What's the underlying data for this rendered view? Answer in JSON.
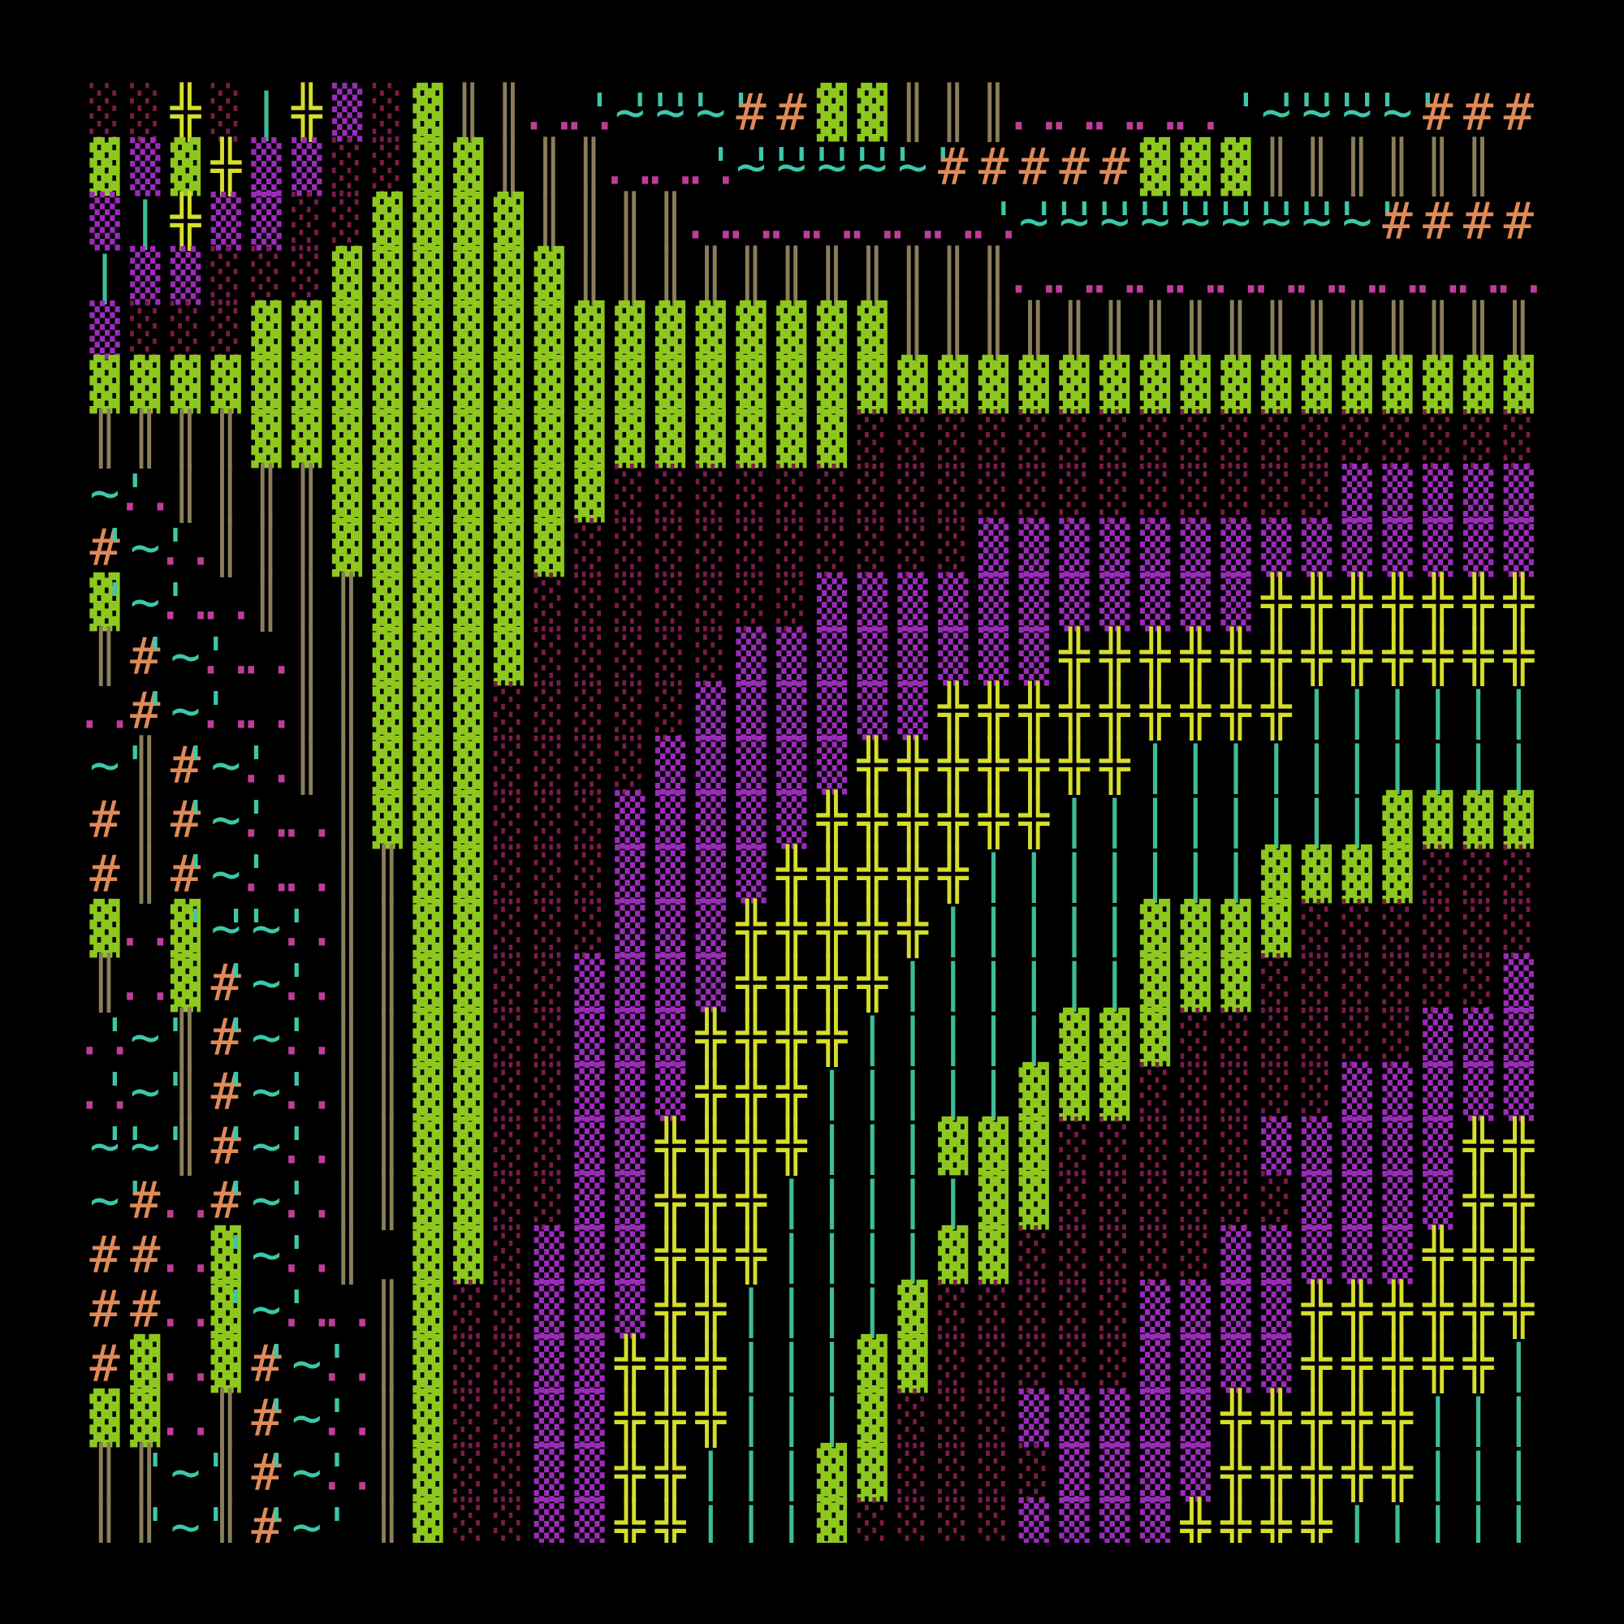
{
  "grid": {
    "rows": [
      [
        "░",
        "░",
        "╬",
        "░",
        "|",
        "╬",
        "▒",
        "░",
        "▓",
        "║",
        "║",
        "..",
        "..",
        "'~'",
        "'~'",
        "'~'",
        "#",
        "#",
        "▓",
        "▓",
        "║",
        "║",
        "║",
        "..",
        "..",
        "..",
        "..",
        "..",
        null,
        "'~'",
        "'~'",
        "'~'",
        "'~'",
        "#",
        "#",
        "#"
      ],
      [
        "▓",
        "▒",
        "▓",
        "╬",
        "▒",
        "▒",
        "░",
        "░",
        "▓",
        "▓",
        "║",
        "║",
        "║",
        "..",
        "..",
        "..",
        "'~'",
        "'~'",
        "'~'",
        "'~'",
        "'~'",
        "#",
        "#",
        "#",
        "#",
        "#",
        "▓",
        "▓",
        "▓",
        "║",
        "║",
        "║",
        "║",
        "║",
        "║",
        null
      ],
      [
        "▒",
        "|",
        "╬",
        "▒",
        "▒",
        "░",
        "░",
        "▓",
        "▓",
        "▓",
        "▓",
        "║",
        "║",
        "║",
        "║",
        "..",
        "..",
        "..",
        "..",
        "..",
        "..",
        "..",
        "..",
        "'~'",
        "'~'",
        "'~'",
        "'~'",
        "'~'",
        "'~'",
        "'~'",
        "'~'",
        "'~'",
        "#",
        "#",
        "#",
        "#"
      ],
      [
        "|",
        "▒",
        "▒",
        "░",
        "░",
        "░",
        "▓",
        "▓",
        "▓",
        "▓",
        "▓",
        "▓",
        "║",
        "║",
        "║",
        "║",
        "║",
        "║",
        "║",
        "║",
        "║",
        "║",
        "║",
        "..",
        "..",
        "..",
        "..",
        "..",
        "..",
        "..",
        "..",
        "..",
        "..",
        "..",
        "..",
        ".."
      ],
      [
        "▒",
        "░",
        "░",
        "░",
        "▓",
        "▓",
        "▓",
        "▓",
        "▓",
        "▓",
        "▓",
        "▓",
        "▓",
        "▓",
        "▓",
        "▓",
        "▓",
        "▓",
        "▓",
        "▓",
        "║",
        "║",
        "║",
        "║",
        "║",
        "║",
        "║",
        "║",
        "║",
        "║",
        "║",
        "║",
        "║",
        "║",
        "║",
        "║"
      ],
      [
        "▓",
        "▓",
        "▓",
        "▓",
        "▓",
        "▓",
        "▓",
        "▓",
        "▓",
        "▓",
        "▓",
        "▓",
        "▓",
        "▓",
        "▓",
        "▓",
        "▓",
        "▓",
        "▓",
        "▓",
        "▓",
        "▓",
        "▓",
        "▓",
        "▓",
        "▓",
        "▓",
        "▓",
        "▓",
        "▓",
        "▓",
        "▓",
        "▓",
        "▓",
        "▓",
        "▓"
      ],
      [
        "║",
        "║",
        "║",
        "║",
        "▓",
        "▓",
        "▓",
        "▓",
        "▓",
        "▓",
        "▓",
        "▓",
        "▓",
        "▓",
        "▓",
        "▓",
        "▓",
        "▓",
        "▓",
        "░",
        "░",
        "░",
        "░",
        "░",
        "░",
        "░",
        "░",
        "░",
        "░",
        "░",
        "░",
        "░",
        "░",
        "░",
        "░",
        "░"
      ],
      [
        "'~'",
        "..",
        "║",
        "║",
        "║",
        "║",
        "▓",
        "▓",
        "▓",
        "▓",
        "▓",
        "▓",
        "▓",
        "░",
        "░",
        "░",
        "░",
        "░",
        "░",
        "░",
        "░",
        "░",
        "░",
        "░",
        "░",
        "░",
        "░",
        "░",
        "░",
        "░",
        "░",
        "▒",
        "▒",
        "▒",
        "▒",
        "▒"
      ],
      [
        "#",
        "'~'",
        "..",
        "║",
        "║",
        "║",
        "▓",
        "▓",
        "▓",
        "▓",
        "▓",
        "▓",
        "░",
        "░",
        "░",
        "░",
        "░",
        "░",
        "░",
        "░",
        "░",
        "░",
        "▒",
        "▒",
        "▒",
        "▒",
        "▒",
        "▒",
        "▒",
        "▒",
        "▒",
        "▒",
        "▒",
        "▒",
        "▒",
        "▒"
      ],
      [
        "▓",
        "'~'",
        "..",
        "..",
        "║",
        "║",
        "║",
        "▓",
        "▓",
        "▓",
        "▓",
        "░",
        "░",
        "░",
        "░",
        "░",
        "░",
        "░",
        "▒",
        "▒",
        "▒",
        "▒",
        "▒",
        "▒",
        "▒",
        "▒",
        "▒",
        "▒",
        "▒",
        "╬",
        "╬",
        "╬",
        "╬",
        "╬",
        "╬",
        "╬"
      ],
      [
        "║",
        "#",
        "'~'",
        "..",
        "..",
        "║",
        "║",
        "▓",
        "▓",
        "▓",
        "▓",
        "░",
        "░",
        "░",
        "░",
        "░",
        "▒",
        "▒",
        "▒",
        "▒",
        "▒",
        "▒",
        "▒",
        "▒",
        "╬",
        "╬",
        "╬",
        "╬",
        "╬",
        "╬",
        "╬",
        "╬",
        "╬",
        "╬",
        "╬",
        "╬"
      ],
      [
        "..",
        "#",
        "'~'",
        "..",
        "..",
        "║",
        "║",
        "▓",
        "▓",
        "▓",
        "░",
        "░",
        "░",
        "░",
        "░",
        "▒",
        "▒",
        "▒",
        "▒",
        "▒",
        "▒",
        "╬",
        "╬",
        "╬",
        "╬",
        "╬",
        "╬",
        "╬",
        "╬",
        "╬",
        "|",
        "|",
        "|",
        "|",
        "|",
        "|"
      ],
      [
        "'~'",
        "║",
        "#",
        "'~'",
        "..",
        "║",
        "║",
        "▓",
        "▓",
        "▓",
        "░",
        "░",
        "░",
        "░",
        "▒",
        "▒",
        "▒",
        "▒",
        "▒",
        "╬",
        "╬",
        "╬",
        "╬",
        "╬",
        "╬",
        "╬",
        "|",
        "|",
        "|",
        "|",
        "|",
        "|",
        "|",
        "|",
        "|",
        "|"
      ],
      [
        "#",
        "║",
        "#",
        "'~'",
        "..",
        "..",
        "║",
        "▓",
        "▓",
        "▓",
        "░",
        "░",
        "░",
        "▒",
        "▒",
        "▒",
        "▒",
        "▒",
        "╬",
        "╬",
        "╬",
        "╬",
        "╬",
        "╬",
        "|",
        "|",
        "|",
        "|",
        "|",
        "|",
        "|",
        "|",
        "▓",
        "▓",
        "▓",
        "▓"
      ],
      [
        "#",
        "║",
        "#",
        "'~'",
        "..",
        "..",
        "║",
        "║",
        "▓",
        "▓",
        "░",
        "░",
        "░",
        "▒",
        "▒",
        "▒",
        "▒",
        "╬",
        "╬",
        "╬",
        "╬",
        "╬",
        "|",
        "|",
        "|",
        "|",
        "|",
        "|",
        "|",
        "▓",
        "▓",
        "▓",
        "▓",
        "░",
        "░",
        "░"
      ],
      [
        "▓",
        "..",
        "▓",
        "'~'",
        "'~'",
        "..",
        "║",
        "║",
        "▓",
        "▓",
        "░",
        "░",
        "░",
        "▒",
        "▒",
        "▒",
        "╬",
        "╬",
        "╬",
        "╬",
        "╬",
        "|",
        "|",
        "|",
        "|",
        "|",
        "▓",
        "▓",
        "▓",
        "▓",
        "░",
        "░",
        "░",
        "░",
        "░",
        "░"
      ],
      [
        "║",
        "..",
        "▓",
        "#",
        "'~'",
        "..",
        "║",
        "║",
        "▓",
        "▓",
        "░",
        "░",
        "▒",
        "▒",
        "▒",
        "▒",
        "╬",
        "╬",
        "╬",
        "╬",
        "|",
        "|",
        "|",
        "|",
        "|",
        "|",
        "▓",
        "▓",
        "▓",
        "░",
        "░",
        "░",
        "░",
        "░",
        "░",
        "▒"
      ],
      [
        "..",
        "'~'",
        "║",
        "#",
        "'~'",
        "..",
        "║",
        "║",
        "▓",
        "▓",
        "░",
        "░",
        "▒",
        "▒",
        "▒",
        "╬",
        "╬",
        "╬",
        "╬",
        "|",
        "|",
        "|",
        "|",
        "|",
        "▓",
        "▓",
        "▓",
        "░",
        "░",
        "░",
        "░",
        "░",
        "░",
        "▒",
        "▒",
        "▒"
      ],
      [
        "..",
        "'~'",
        "║",
        "#",
        "'~'",
        "..",
        "║",
        "║",
        "▓",
        "▓",
        "░",
        "░",
        "▒",
        "▒",
        "▒",
        "╬",
        "╬",
        "╬",
        "|",
        "|",
        "|",
        "|",
        "|",
        "▓",
        "▓",
        "▓",
        "░",
        "░",
        "░",
        "░",
        "░",
        "▒",
        "▒",
        "▒",
        "▒",
        "▒"
      ],
      [
        "'~'",
        "'~'",
        "║",
        "#",
        "'~'",
        "..",
        "║",
        "║",
        "▓",
        "▓",
        "░",
        "░",
        "▒",
        "▒",
        "╬",
        "╬",
        "╬",
        "╬",
        "|",
        "|",
        "|",
        "▓",
        "▓",
        "▓",
        "░",
        "░",
        "░",
        "░",
        "░",
        "▒",
        "▒",
        "▒",
        "▒",
        "▒",
        "╬",
        "╬"
      ],
      [
        "'~'",
        "#",
        "..",
        "#",
        "'~'",
        "..",
        "║",
        "║",
        "▓",
        "▓",
        "░",
        "░",
        "▒",
        "▒",
        "╬",
        "╬",
        "╬",
        "|",
        "|",
        "|",
        "|",
        "|",
        "▓",
        "▓",
        "░",
        "░",
        "░",
        "░",
        "░",
        "░",
        "▒",
        "▒",
        "▒",
        "▒",
        "╬",
        "╬"
      ],
      [
        "#",
        "#",
        "..",
        "▓",
        "'~'",
        "..",
        "║",
        null,
        "▓",
        "▓",
        "░",
        "▒",
        "▒",
        "▒",
        "╬",
        "╬",
        "╬",
        "|",
        "|",
        "|",
        "|",
        "▓",
        "▓",
        "░",
        "░",
        "░",
        "░",
        "░",
        "▒",
        "▒",
        "▒",
        "▒",
        "▒",
        "╬",
        "╬",
        "╬"
      ],
      [
        "#",
        "#",
        "..",
        "▓",
        "'~'",
        "..",
        "..",
        "║",
        "▓",
        "░",
        "░",
        "▒",
        "▒",
        "▒",
        "╬",
        "╬",
        "|",
        "|",
        "|",
        "|",
        "▓",
        "░",
        "░",
        "░",
        "░",
        "░",
        "▒",
        "▒",
        "▒",
        "▒",
        "╬",
        "╬",
        "╬",
        "╬",
        "╬",
        "╬"
      ],
      [
        "#",
        "▓",
        "..",
        "▓",
        "#",
        "'~'",
        "..",
        "║",
        "▓",
        "░",
        "░",
        "▒",
        "▒",
        "╬",
        "╬",
        "╬",
        "|",
        "|",
        "|",
        "▓",
        "▓",
        "░",
        "░",
        "░",
        "░",
        "░",
        "▒",
        "▒",
        "▒",
        "▒",
        "╬",
        "╬",
        "╬",
        "╬",
        "╬",
        "|"
      ],
      [
        "▓",
        "▓",
        "..",
        "║",
        "#",
        "'~'",
        "..",
        "║",
        "▓",
        "░",
        "░",
        "▒",
        "▒",
        "╬",
        "╬",
        "╬",
        "|",
        "|",
        "|",
        "▓",
        "░",
        "░",
        "░",
        "▒",
        "▒",
        "▒",
        "▒",
        "▒",
        "╬",
        "╬",
        "╬",
        "╬",
        "╬",
        "|",
        "|",
        "|"
      ],
      [
        "║",
        "║",
        "'~'",
        "║",
        "#",
        "'~'",
        "..",
        "║",
        "▓",
        "░",
        "░",
        "▒",
        "▒",
        "╬",
        "╬",
        "|",
        "|",
        "|",
        "▓",
        "▓",
        "░",
        "░",
        "░",
        "░",
        "▒",
        "▒",
        "▒",
        "▒",
        "╬",
        "╬",
        "╬",
        "╬",
        "╬",
        "|",
        "|",
        "|"
      ],
      [
        "║",
        "║",
        "'~'",
        "║",
        "#",
        "'~'",
        null,
        "║",
        "▓",
        "░",
        "░",
        "▒",
        "▒",
        "╬",
        "╬",
        "|",
        "|",
        "|",
        "▓",
        "░",
        "░",
        "░",
        "░",
        "▒",
        "▒",
        "▒",
        "▒",
        "╬",
        "╬",
        "╬",
        "╬",
        "|",
        "|",
        "|",
        "|",
        "|"
      ]
    ]
  }
}
